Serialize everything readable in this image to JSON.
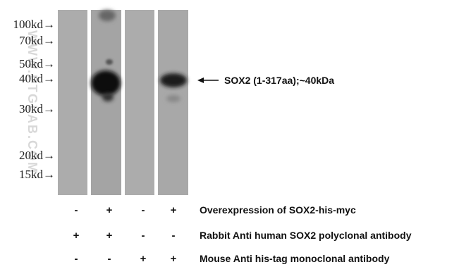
{
  "watermark": "WWW.PTGLAB.COM",
  "markers": [
    "100kd→",
    "70kd→",
    "50kd→",
    "40kd→",
    "30kd→",
    "20kd→",
    "15kd→"
  ],
  "band_label": "SOX2 (1-317aa);~40kDa",
  "conditions": [
    {
      "label": "Overexpression of SOX2-his-myc",
      "signs": [
        "-",
        "+",
        "-",
        "+"
      ]
    },
    {
      "label": "Rabbit Anti human SOX2 polyclonal antibody",
      "signs": [
        "+",
        "+",
        "-",
        "-"
      ]
    },
    {
      "label": "Mouse Anti his-tag monoclonal antibody",
      "signs": [
        "-",
        "-",
        "+",
        "+"
      ]
    }
  ]
}
